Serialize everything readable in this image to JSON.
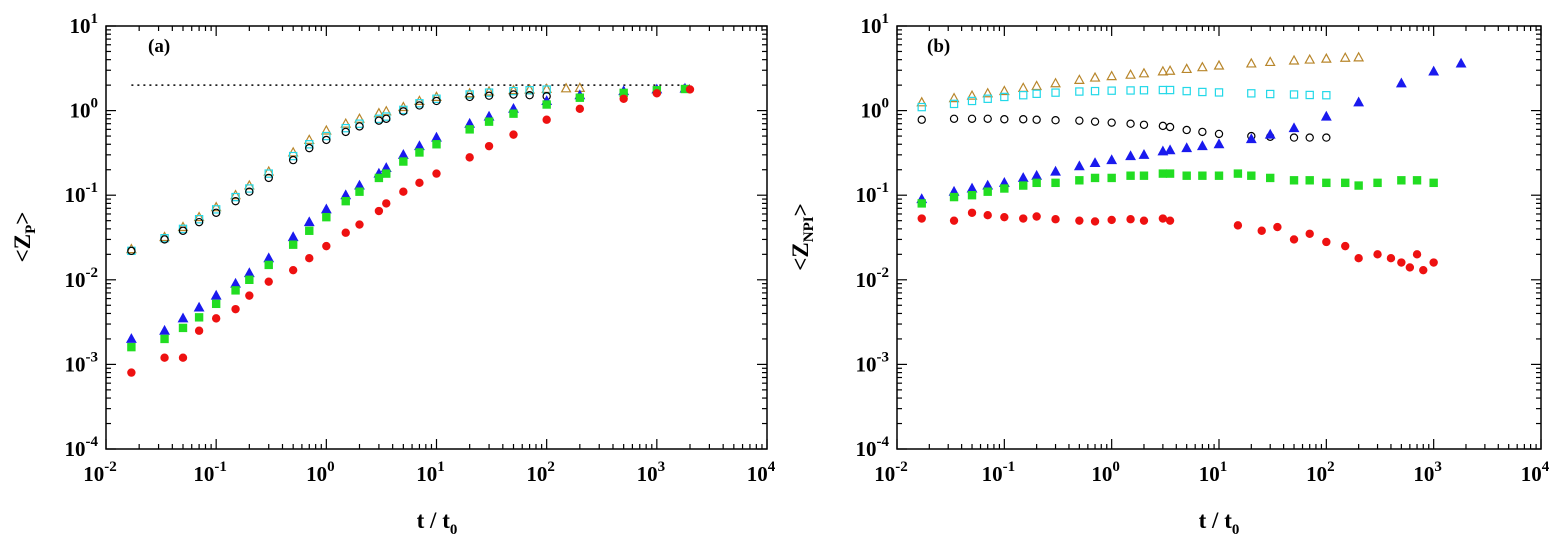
{
  "chart_data": [
    {
      "type": "scatter",
      "panel_label": "(a)",
      "ylabel": {
        "base": "<Z",
        "sub": "P",
        "end": ">"
      },
      "xlabel": {
        "base": "t / t",
        "sub": "0"
      },
      "xscale": "log",
      "yscale": "log",
      "xlim": [
        0.01,
        10000
      ],
      "ylim": [
        0.0001,
        10
      ],
      "x_ticks": [
        {
          "m": "10",
          "e": "-2"
        },
        {
          "m": "10",
          "e": "-1"
        },
        {
          "m": "10",
          "e": "0"
        },
        {
          "m": "10",
          "e": "1"
        },
        {
          "m": "10",
          "e": "2"
        },
        {
          "m": "10",
          "e": "3"
        },
        {
          "m": "10",
          "e": "4"
        }
      ],
      "y_ticks": [
        {
          "m": "10",
          "e": "-4"
        },
        {
          "m": "10",
          "e": "-3"
        },
        {
          "m": "10",
          "e": "-2"
        },
        {
          "m": "10",
          "e": "-1"
        },
        {
          "m": "10",
          "e": "0"
        },
        {
          "m": "10",
          "e": "1"
        }
      ],
      "reference_line": {
        "y": 2.0,
        "x_from": 0.017,
        "x_to": 2000,
        "style": "dotted"
      },
      "series": [
        {
          "name": "gold-open-triangle",
          "color": "#b8862b",
          "marker": "triangle",
          "filled": false,
          "x": [
            0.017,
            0.034,
            0.05,
            0.07,
            0.1,
            0.15,
            0.2,
            0.3,
            0.5,
            0.7,
            1.0,
            1.5,
            2.0,
            3.0,
            3.5,
            5,
            7,
            10,
            20,
            30,
            50,
            70,
            100,
            150,
            200
          ],
          "y": [
            0.023,
            0.032,
            0.042,
            0.055,
            0.072,
            0.1,
            0.13,
            0.19,
            0.32,
            0.45,
            0.58,
            0.7,
            0.8,
            0.93,
            0.98,
            1.1,
            1.3,
            1.45,
            1.6,
            1.68,
            1.74,
            1.77,
            1.8,
            1.83,
            1.85
          ]
        },
        {
          "name": "cyan-open-square",
          "color": "#22d8e8",
          "marker": "square",
          "filled": false,
          "x": [
            0.017,
            0.034,
            0.05,
            0.07,
            0.1,
            0.15,
            0.2,
            0.3,
            0.5,
            0.7,
            1.0,
            1.5,
            2.0,
            3.0,
            3.5,
            5,
            7,
            10,
            20,
            30,
            50,
            70,
            100
          ],
          "y": [
            0.022,
            0.031,
            0.04,
            0.052,
            0.068,
            0.095,
            0.12,
            0.18,
            0.29,
            0.4,
            0.5,
            0.62,
            0.7,
            0.8,
            0.85,
            1.02,
            1.22,
            1.38,
            1.55,
            1.63,
            1.7,
            1.74,
            1.77
          ]
        },
        {
          "name": "black-open-circle",
          "color": "#000000",
          "marker": "circle",
          "filled": false,
          "x": [
            0.017,
            0.034,
            0.05,
            0.07,
            0.1,
            0.15,
            0.2,
            0.3,
            0.5,
            0.7,
            1.0,
            1.5,
            2.0,
            3.0,
            3.5,
            5,
            7,
            10,
            20,
            30,
            50,
            70,
            100
          ],
          "y": [
            0.022,
            0.03,
            0.038,
            0.048,
            0.062,
            0.085,
            0.11,
            0.16,
            0.26,
            0.36,
            0.45,
            0.56,
            0.65,
            0.76,
            0.8,
            0.98,
            1.15,
            1.3,
            1.45,
            1.5,
            1.55,
            1.52,
            1.48
          ]
        },
        {
          "name": "blue-filled-triangle",
          "color": "#1a1aee",
          "marker": "triangle",
          "filled": true,
          "x": [
            0.017,
            0.034,
            0.05,
            0.07,
            0.1,
            0.15,
            0.2,
            0.3,
            0.5,
            0.7,
            1.0,
            1.5,
            2.0,
            3.0,
            3.5,
            5,
            7,
            10,
            20,
            30,
            50,
            100,
            200,
            500,
            1000,
            1800
          ],
          "y": [
            0.002,
            0.0025,
            0.0035,
            0.0047,
            0.0065,
            0.009,
            0.012,
            0.018,
            0.032,
            0.048,
            0.068,
            0.1,
            0.13,
            0.18,
            0.21,
            0.3,
            0.38,
            0.48,
            0.7,
            0.85,
            1.05,
            1.3,
            1.52,
            1.7,
            1.78,
            1.82
          ]
        },
        {
          "name": "green-filled-square",
          "color": "#22dd22",
          "marker": "square",
          "filled": true,
          "x": [
            0.017,
            0.034,
            0.05,
            0.07,
            0.1,
            0.15,
            0.2,
            0.3,
            0.5,
            0.7,
            1.0,
            1.5,
            2.0,
            3.0,
            3.5,
            5,
            7,
            10,
            20,
            30,
            50,
            100,
            200,
            500,
            1000,
            1800
          ],
          "y": [
            0.0016,
            0.002,
            0.0027,
            0.0036,
            0.0052,
            0.0075,
            0.01,
            0.015,
            0.026,
            0.038,
            0.055,
            0.085,
            0.11,
            0.16,
            0.18,
            0.25,
            0.32,
            0.4,
            0.6,
            0.74,
            0.92,
            1.18,
            1.42,
            1.62,
            1.74,
            1.8
          ]
        },
        {
          "name": "red-filled-circle",
          "color": "#ee1111",
          "marker": "circle",
          "filled": true,
          "x": [
            0.017,
            0.034,
            0.05,
            0.07,
            0.1,
            0.15,
            0.2,
            0.3,
            0.5,
            0.7,
            1.0,
            1.5,
            2.0,
            3.0,
            3.5,
            5,
            7,
            10,
            20,
            30,
            50,
            100,
            200,
            500,
            1000,
            2000
          ],
          "y": [
            0.0008,
            0.0012,
            0.0012,
            0.0025,
            0.0035,
            0.0045,
            0.0065,
            0.0095,
            0.013,
            0.018,
            0.025,
            0.036,
            0.045,
            0.065,
            0.08,
            0.11,
            0.14,
            0.18,
            0.28,
            0.38,
            0.52,
            0.78,
            1.05,
            1.38,
            1.6,
            1.78
          ]
        }
      ]
    },
    {
      "type": "scatter",
      "panel_label": "(b)",
      "ylabel": {
        "base": "<Z",
        "sub": "NPI",
        "end": ">"
      },
      "xlabel": {
        "base": "t / t",
        "sub": "0"
      },
      "xscale": "log",
      "yscale": "log",
      "xlim": [
        0.01,
        10000
      ],
      "ylim": [
        0.0001,
        10
      ],
      "x_ticks": [
        {
          "m": "10",
          "e": "-2"
        },
        {
          "m": "10",
          "e": "-1"
        },
        {
          "m": "10",
          "e": "0"
        },
        {
          "m": "10",
          "e": "1"
        },
        {
          "m": "10",
          "e": "2"
        },
        {
          "m": "10",
          "e": "3"
        },
        {
          "m": "10",
          "e": "4"
        }
      ],
      "y_ticks": [
        {
          "m": "10",
          "e": "-4"
        },
        {
          "m": "10",
          "e": "-3"
        },
        {
          "m": "10",
          "e": "-2"
        },
        {
          "m": "10",
          "e": "-1"
        },
        {
          "m": "10",
          "e": "0"
        },
        {
          "m": "10",
          "e": "1"
        }
      ],
      "series": [
        {
          "name": "gold-open-triangle",
          "color": "#b8862b",
          "marker": "triangle",
          "filled": false,
          "x": [
            0.017,
            0.034,
            0.05,
            0.07,
            0.1,
            0.15,
            0.2,
            0.3,
            0.5,
            0.7,
            1.0,
            1.5,
            2.0,
            3.0,
            3.5,
            5,
            7,
            10,
            20,
            30,
            50,
            70,
            100,
            150,
            200
          ],
          "y": [
            1.25,
            1.4,
            1.5,
            1.6,
            1.7,
            1.85,
            1.95,
            2.1,
            2.3,
            2.45,
            2.55,
            2.65,
            2.75,
            2.9,
            2.95,
            3.1,
            3.25,
            3.4,
            3.6,
            3.75,
            3.9,
            4.0,
            4.1,
            4.2,
            4.25
          ]
        },
        {
          "name": "cyan-open-square",
          "color": "#22d8e8",
          "marker": "square",
          "filled": false,
          "x": [
            0.017,
            0.034,
            0.05,
            0.07,
            0.1,
            0.15,
            0.2,
            0.3,
            0.5,
            0.7,
            1.0,
            1.5,
            2.0,
            3.0,
            3.5,
            5,
            7,
            10,
            20,
            30,
            50,
            70,
            100
          ],
          "y": [
            1.1,
            1.2,
            1.3,
            1.38,
            1.45,
            1.52,
            1.58,
            1.63,
            1.68,
            1.7,
            1.72,
            1.73,
            1.74,
            1.75,
            1.75,
            1.7,
            1.66,
            1.64,
            1.6,
            1.57,
            1.55,
            1.53,
            1.52
          ]
        },
        {
          "name": "black-open-circle",
          "color": "#000000",
          "marker": "circle",
          "filled": false,
          "x": [
            0.017,
            0.034,
            0.05,
            0.07,
            0.1,
            0.15,
            0.2,
            0.3,
            0.5,
            0.7,
            1.0,
            1.5,
            2.0,
            3.0,
            3.5,
            5,
            7,
            10,
            20,
            30,
            50,
            70,
            100
          ],
          "y": [
            0.78,
            0.8,
            0.8,
            0.8,
            0.79,
            0.79,
            0.78,
            0.77,
            0.76,
            0.74,
            0.72,
            0.7,
            0.68,
            0.66,
            0.64,
            0.59,
            0.56,
            0.53,
            0.5,
            0.49,
            0.48,
            0.48,
            0.48
          ]
        },
        {
          "name": "blue-filled-triangle",
          "color": "#1a1aee",
          "marker": "triangle",
          "filled": true,
          "x": [
            0.017,
            0.034,
            0.05,
            0.07,
            0.1,
            0.15,
            0.2,
            0.3,
            0.5,
            0.7,
            1.0,
            1.5,
            2.0,
            3.0,
            3.5,
            5,
            7,
            10,
            20,
            30,
            50,
            100,
            200,
            500,
            1000,
            1800
          ],
          "y": [
            0.09,
            0.11,
            0.12,
            0.13,
            0.14,
            0.16,
            0.17,
            0.19,
            0.22,
            0.24,
            0.26,
            0.29,
            0.3,
            0.33,
            0.34,
            0.36,
            0.38,
            0.4,
            0.46,
            0.52,
            0.62,
            0.85,
            1.25,
            2.1,
            2.9,
            3.6
          ]
        },
        {
          "name": "green-filled-square",
          "color": "#22dd22",
          "marker": "square",
          "filled": true,
          "x": [
            0.017,
            0.034,
            0.05,
            0.07,
            0.1,
            0.15,
            0.2,
            0.3,
            0.5,
            0.7,
            1.0,
            1.5,
            2.0,
            3.0,
            3.5,
            5,
            7,
            10,
            15,
            20,
            30,
            50,
            70,
            100,
            150,
            200,
            300,
            500,
            700,
            1000
          ],
          "y": [
            0.08,
            0.095,
            0.1,
            0.11,
            0.12,
            0.13,
            0.14,
            0.14,
            0.15,
            0.16,
            0.16,
            0.17,
            0.17,
            0.18,
            0.18,
            0.17,
            0.17,
            0.17,
            0.18,
            0.17,
            0.16,
            0.15,
            0.15,
            0.14,
            0.14,
            0.13,
            0.14,
            0.15,
            0.15,
            0.14
          ]
        },
        {
          "name": "red-filled-circle",
          "color": "#ee1111",
          "marker": "circle",
          "filled": true,
          "x": [
            0.017,
            0.034,
            0.05,
            0.07,
            0.1,
            0.15,
            0.2,
            0.3,
            0.5,
            0.7,
            1.0,
            1.5,
            2.0,
            3.0,
            3.5,
            15,
            25,
            35,
            50,
            70,
            100,
            150,
            200,
            300,
            400,
            500,
            600,
            700,
            800,
            1000
          ],
          "y": [
            0.053,
            0.05,
            0.062,
            0.058,
            0.055,
            0.053,
            0.056,
            0.052,
            0.05,
            0.049,
            0.051,
            0.052,
            0.05,
            0.053,
            0.05,
            0.044,
            0.038,
            0.042,
            0.03,
            0.035,
            0.028,
            0.025,
            0.018,
            0.02,
            0.018,
            0.016,
            0.014,
            0.02,
            0.013,
            0.016
          ]
        }
      ]
    }
  ]
}
